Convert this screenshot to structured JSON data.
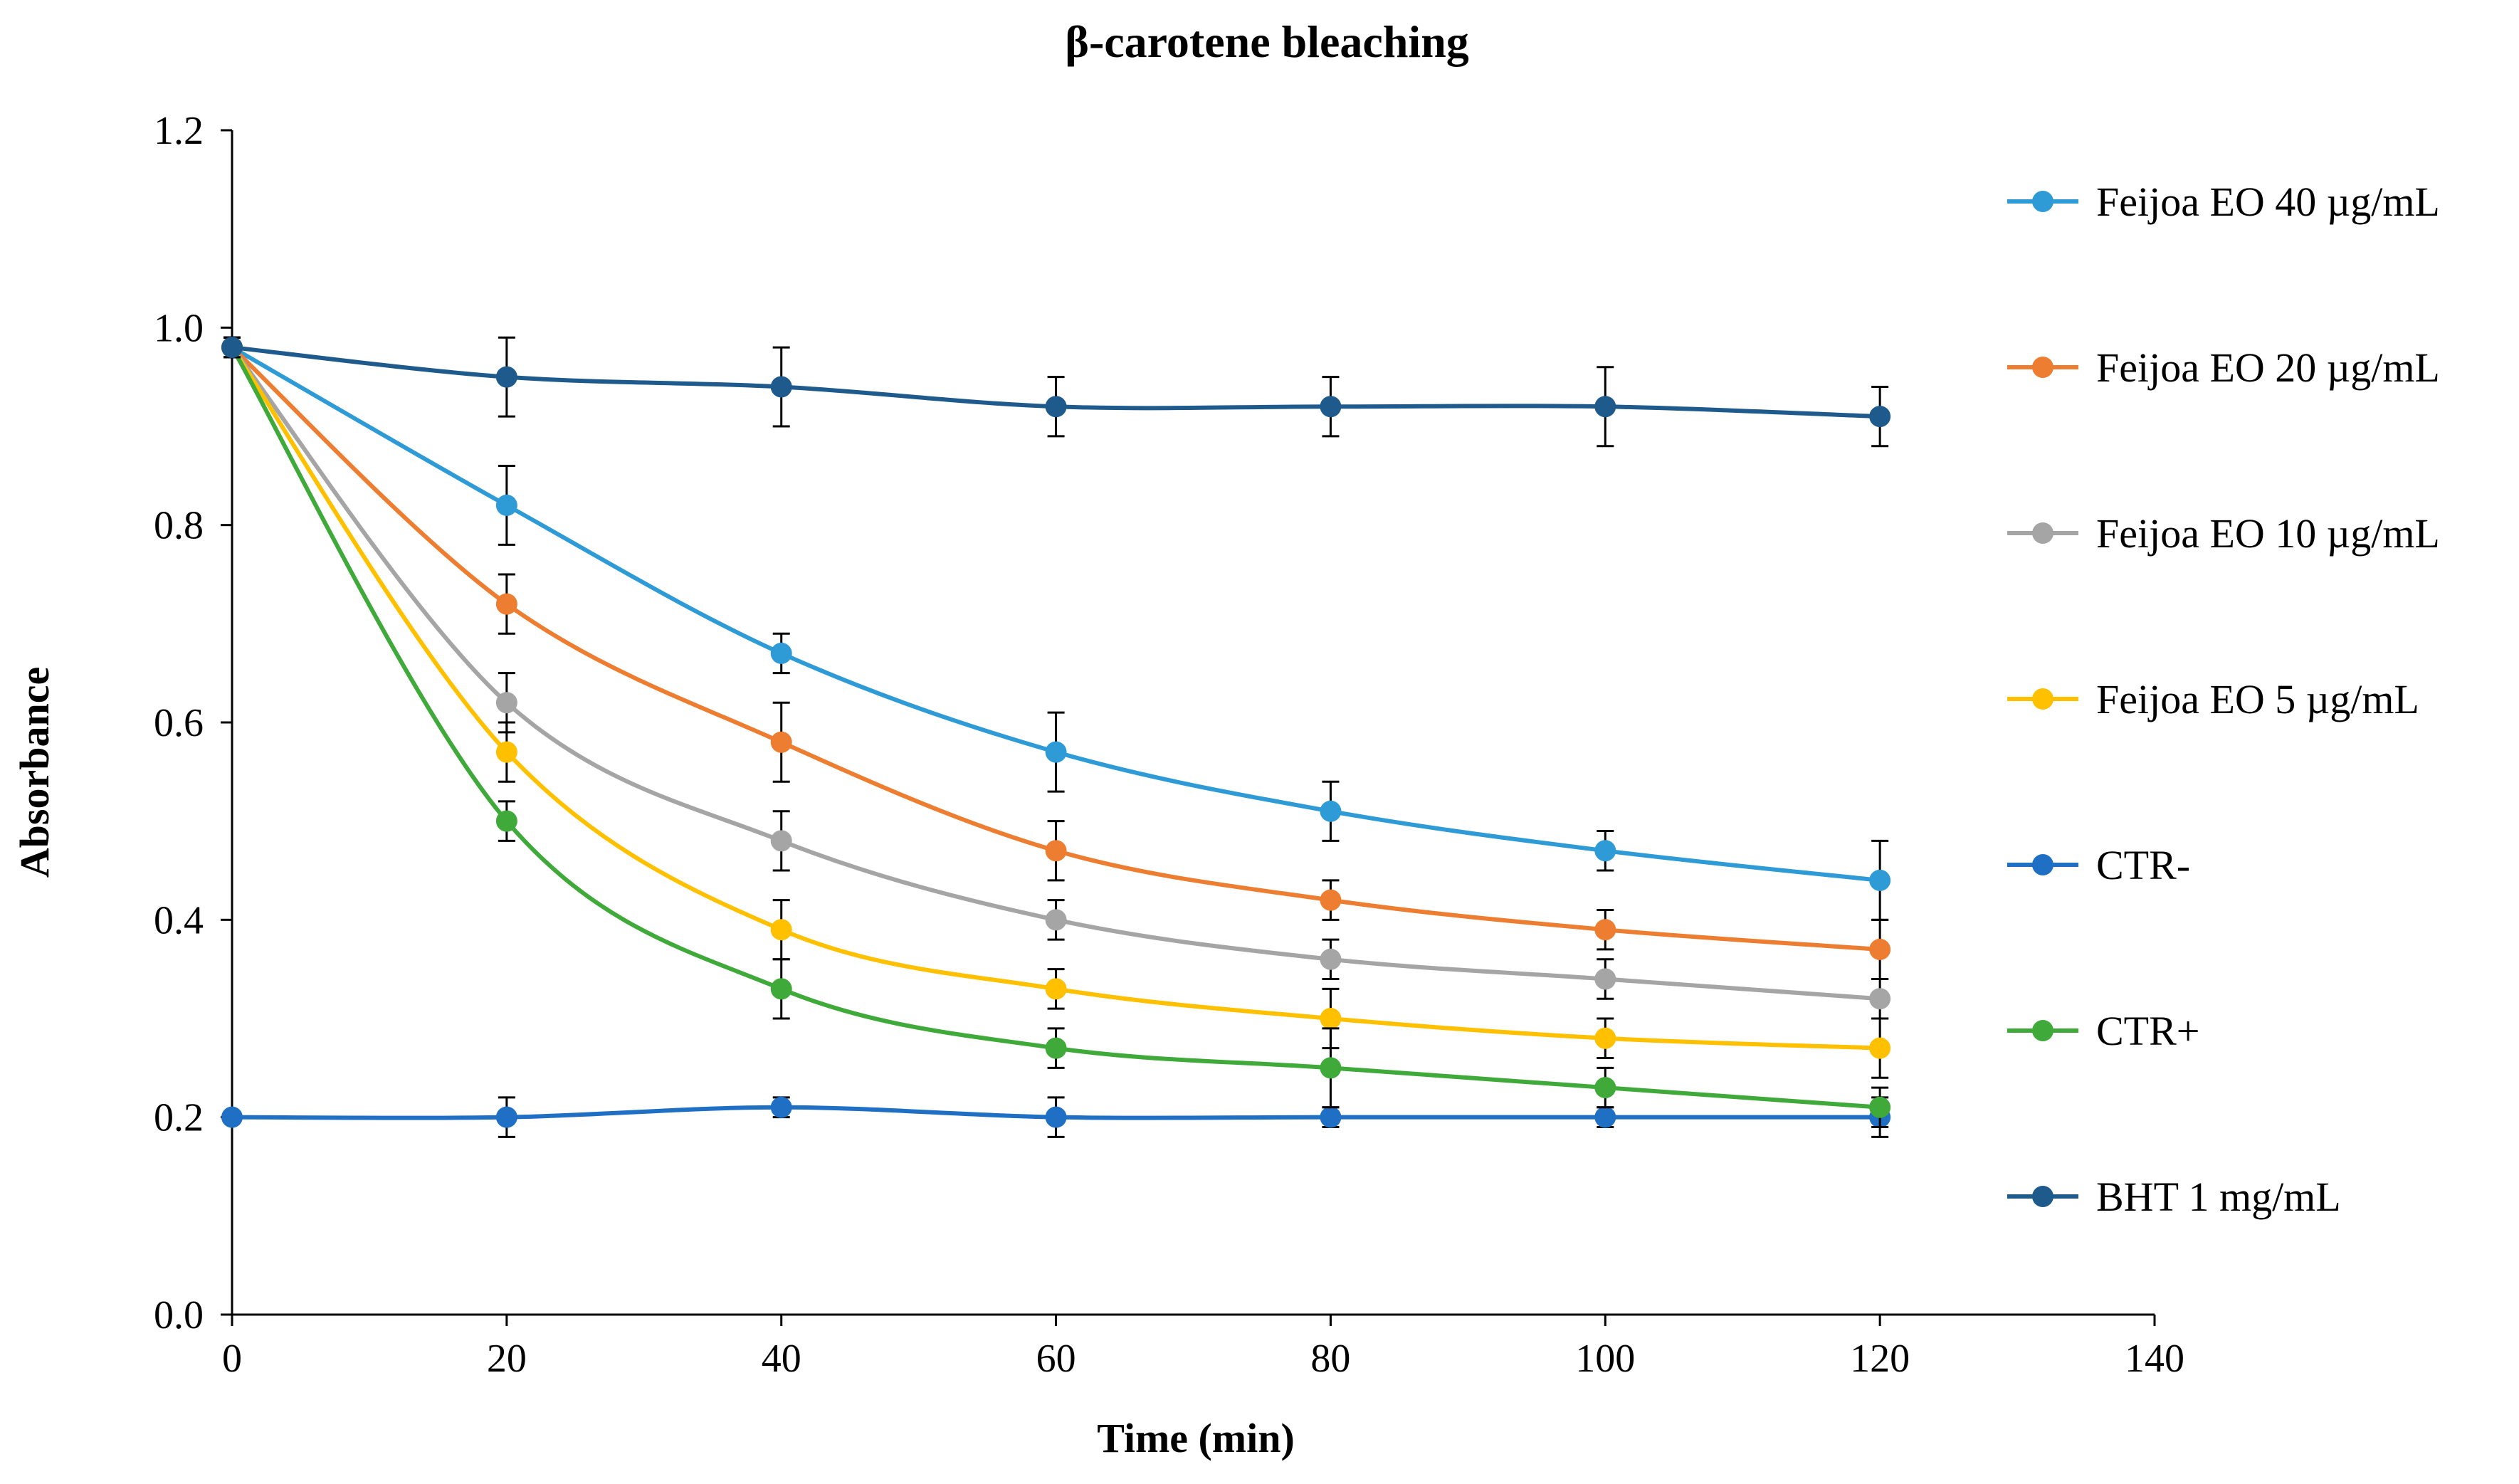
{
  "chart_data": {
    "type": "line",
    "title": "β-carotene bleaching",
    "xlabel": "Time (min)",
    "ylabel": "Absorbance",
    "xlim": [
      0,
      140
    ],
    "ylim": [
      0,
      1.2
    ],
    "xticks": [
      0,
      20,
      40,
      60,
      80,
      100,
      120,
      140
    ],
    "xtick_labels": [
      "0",
      "20",
      "40",
      "60",
      "80",
      "100",
      "120",
      "140"
    ],
    "yticks": [
      0,
      0.2,
      0.4,
      0.6,
      0.8,
      1.0,
      1.2
    ],
    "ytick_labels": [
      "0.0",
      "0.2",
      "0.4",
      "0.6",
      "0.8",
      "1.0",
      "1.2"
    ],
    "grid": false,
    "legend_position": "right",
    "x": [
      0,
      20,
      40,
      60,
      80,
      100,
      120
    ],
    "series": [
      {
        "name": "Feijoa EO 40 µg/mL",
        "color": "#2E9BD6",
        "values": [
          0.98,
          0.82,
          0.67,
          0.57,
          0.51,
          0.47,
          0.44
        ],
        "errors": [
          0.01,
          0.04,
          0.02,
          0.04,
          0.03,
          0.02,
          0.04
        ]
      },
      {
        "name": "Feijoa EO 20 µg/mL",
        "color": "#ED7D31",
        "values": [
          0.98,
          0.72,
          0.58,
          0.47,
          0.42,
          0.39,
          0.37
        ],
        "errors": [
          0.01,
          0.03,
          0.04,
          0.03,
          0.02,
          0.02,
          0.03
        ]
      },
      {
        "name": "Feijoa EO 10 µg/mL",
        "color": "#A5A5A5",
        "values": [
          0.98,
          0.62,
          0.48,
          0.4,
          0.36,
          0.34,
          0.32
        ],
        "errors": [
          0.01,
          0.03,
          0.03,
          0.02,
          0.02,
          0.02,
          0.02
        ]
      },
      {
        "name": "Feijoa EO 5 µg/mL",
        "color": "#FFC000",
        "values": [
          0.98,
          0.57,
          0.39,
          0.33,
          0.3,
          0.28,
          0.27
        ],
        "errors": [
          0.01,
          0.03,
          0.03,
          0.02,
          0.03,
          0.02,
          0.03
        ]
      },
      {
        "name": "CTR-",
        "color": "#1F6FC5",
        "values": [
          0.2,
          0.2,
          0.21,
          0.2,
          0.2,
          0.2,
          0.2
        ],
        "errors": [
          0.005,
          0.02,
          0.01,
          0.02,
          0.01,
          0.01,
          0.02
        ]
      },
      {
        "name": "CTR+",
        "color": "#3FAA3A",
        "values": [
          0.98,
          0.5,
          0.33,
          0.27,
          0.25,
          0.23,
          0.21
        ],
        "errors": [
          0.01,
          0.02,
          0.03,
          0.02,
          0.04,
          0.02,
          0.02
        ]
      },
      {
        "name": "BHT 1 mg/mL",
        "color": "#1F5A8C",
        "values": [
          0.98,
          0.95,
          0.94,
          0.92,
          0.92,
          0.92,
          0.91
        ],
        "errors": [
          0.01,
          0.04,
          0.04,
          0.03,
          0.03,
          0.04,
          0.03
        ]
      }
    ]
  }
}
